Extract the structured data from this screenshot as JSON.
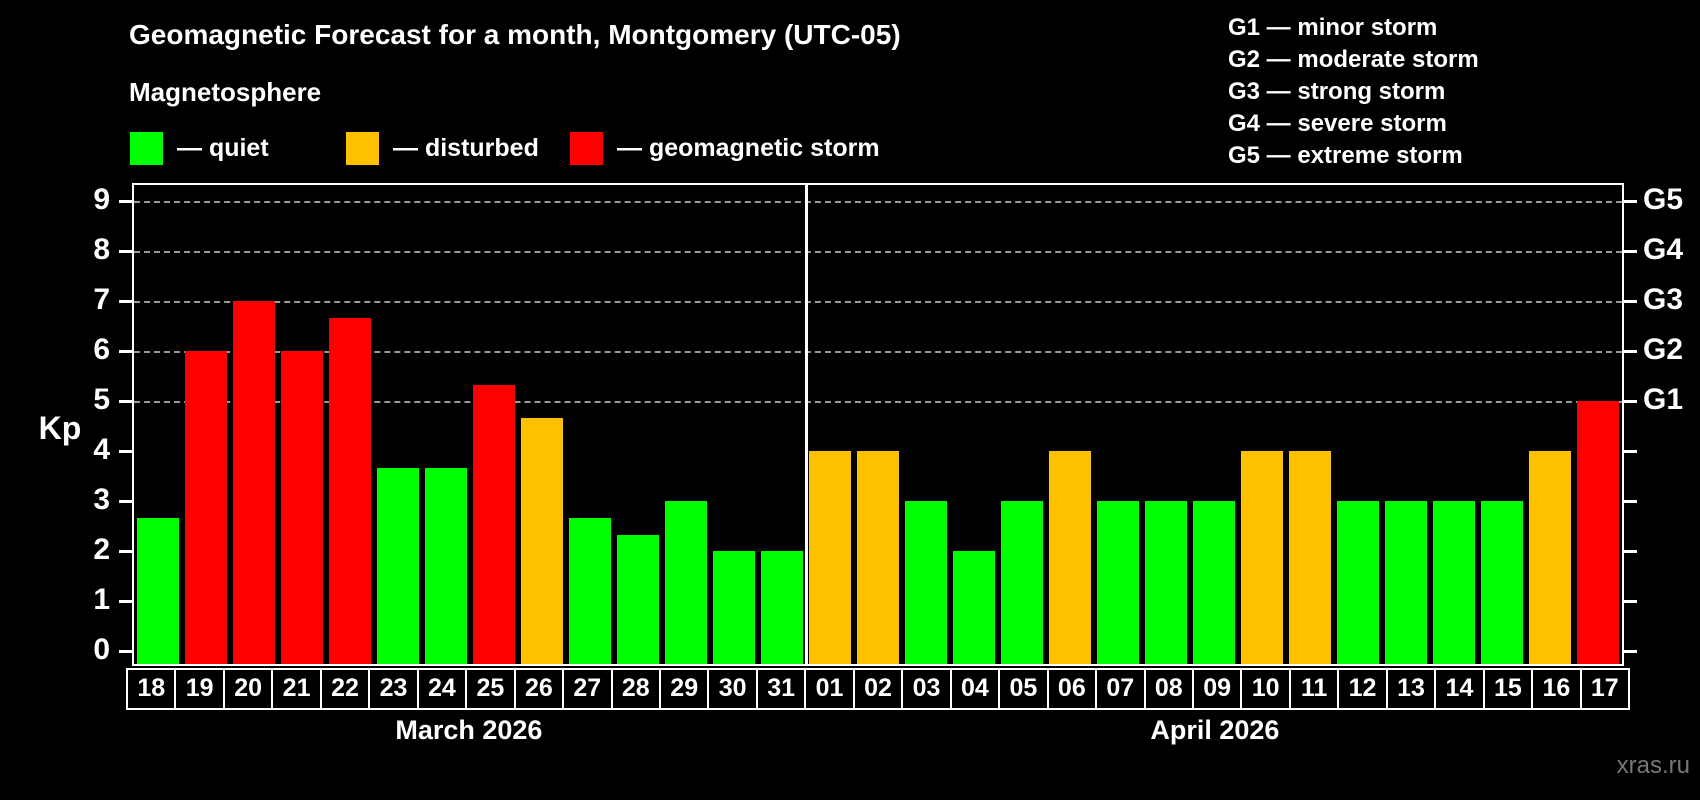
{
  "title": "Geomagnetic Forecast for a month, Montgomery (UTC-05)",
  "subtitle": "Magnetosphere",
  "legend": [
    {
      "label": "— quiet",
      "status": "quiet"
    },
    {
      "label": "— disturbed",
      "status": "disturbed"
    },
    {
      "label": "— geomagnetic storm",
      "status": "storm"
    }
  ],
  "g_scale_legend": [
    "G1 — minor storm",
    "G2 — moderate storm",
    "G3 — strong storm",
    "G4 — severe storm",
    "G5 — extreme storm"
  ],
  "watermark": "xras.ru",
  "chart_data": {
    "type": "bar",
    "title": "Geomagnetic Forecast for a month, Montgomery (UTC-05)",
    "ylabel": "Kp",
    "ylim": [
      0,
      9.4
    ],
    "y_ticks": [
      "0",
      "1",
      "2",
      "3",
      "4",
      "5",
      "6",
      "7",
      "8",
      "9"
    ],
    "gridlines": [
      5,
      6,
      7,
      8,
      9
    ],
    "grid_style": "dashed",
    "legend_position": "top-left",
    "right_axis_labels": [
      {
        "value": 5,
        "label": "G1"
      },
      {
        "value": 6,
        "label": "G2"
      },
      {
        "value": 7,
        "label": "G3"
      },
      {
        "value": 8,
        "label": "G4"
      },
      {
        "value": 9,
        "label": "G5"
      }
    ],
    "status_colors": {
      "quiet": "#00ff00",
      "disturbed": "#ffc000",
      "storm": "#ff0000"
    },
    "months": [
      {
        "label": "March 2026",
        "days": 14
      },
      {
        "label": "April 2026",
        "days": 17
      }
    ],
    "categories": [
      "18",
      "19",
      "20",
      "21",
      "22",
      "23",
      "24",
      "25",
      "26",
      "27",
      "28",
      "29",
      "30",
      "31",
      "01",
      "02",
      "03",
      "04",
      "05",
      "06",
      "07",
      "08",
      "09",
      "10",
      "11",
      "12",
      "13",
      "14",
      "15",
      "16",
      "17"
    ],
    "values": [
      2.67,
      6,
      7,
      6,
      6.67,
      3.67,
      3.67,
      5.33,
      4.67,
      2.67,
      2.33,
      3,
      2,
      2,
      4,
      4,
      3,
      2,
      3,
      4,
      3,
      3,
      3,
      4,
      4,
      3,
      3,
      3,
      3,
      4,
      5
    ],
    "statuses": [
      "quiet",
      "storm",
      "storm",
      "storm",
      "storm",
      "quiet",
      "quiet",
      "storm",
      "disturbed",
      "quiet",
      "quiet",
      "quiet",
      "quiet",
      "quiet",
      "disturbed",
      "disturbed",
      "quiet",
      "quiet",
      "quiet",
      "disturbed",
      "quiet",
      "quiet",
      "quiet",
      "disturbed",
      "disturbed",
      "quiet",
      "quiet",
      "quiet",
      "quiet",
      "disturbed",
      "storm"
    ]
  }
}
